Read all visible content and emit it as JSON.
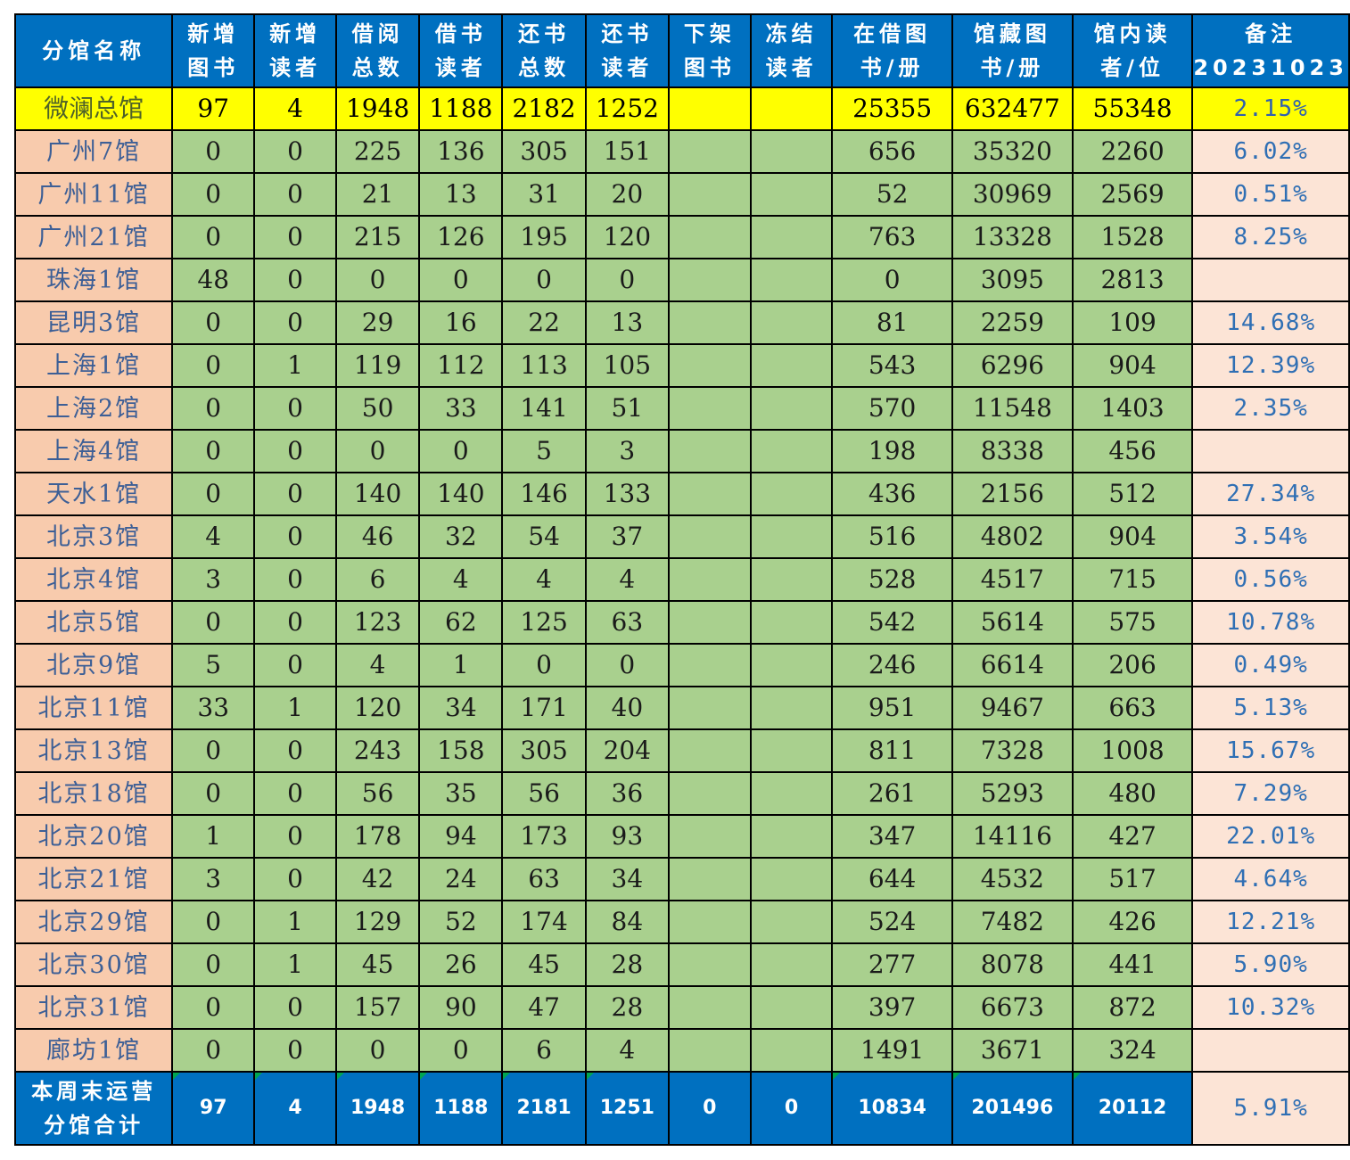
{
  "header": {
    "col0": [
      "分馆名称"
    ],
    "col1": [
      "新增",
      "图书"
    ],
    "col2": [
      "新增",
      "读者"
    ],
    "col3": [
      "借阅",
      "总数"
    ],
    "col4": [
      "借书",
      "读者"
    ],
    "col5": [
      "还书",
      "总数"
    ],
    "col6": [
      "还书",
      "读者"
    ],
    "col7": [
      "下架",
      "图书"
    ],
    "col8": [
      "冻结",
      "读者"
    ],
    "col9": [
      "在借图",
      "书/册"
    ],
    "col10": [
      "馆藏图",
      "书/册"
    ],
    "col11": [
      "馆内读",
      "者/位"
    ],
    "col12": [
      "备注",
      "20231023"
    ]
  },
  "main_branch": [
    "微澜总馆",
    "97",
    "4",
    "1948",
    "1188",
    "2182",
    "1252",
    "",
    "",
    "25355",
    "632477",
    "55348",
    "2.15%"
  ],
  "rows": [
    [
      "广州7馆",
      "0",
      "0",
      "225",
      "136",
      "305",
      "151",
      "",
      "",
      "656",
      "35320",
      "2260",
      "6.02%"
    ],
    [
      "广州11馆",
      "0",
      "0",
      "21",
      "13",
      "31",
      "20",
      "",
      "",
      "52",
      "30969",
      "2569",
      "0.51%"
    ],
    [
      "广州21馆",
      "0",
      "0",
      "215",
      "126",
      "195",
      "120",
      "",
      "",
      "763",
      "13328",
      "1528",
      "8.25%"
    ],
    [
      "珠海1馆",
      "48",
      "0",
      "0",
      "0",
      "0",
      "0",
      "",
      "",
      "0",
      "3095",
      "2813",
      ""
    ],
    [
      "昆明3馆",
      "0",
      "0",
      "29",
      "16",
      "22",
      "13",
      "",
      "",
      "81",
      "2259",
      "109",
      "14.68%"
    ],
    [
      "上海1馆",
      "0",
      "1",
      "119",
      "112",
      "113",
      "105",
      "",
      "",
      "543",
      "6296",
      "904",
      "12.39%"
    ],
    [
      "上海2馆",
      "0",
      "0",
      "50",
      "33",
      "141",
      "51",
      "",
      "",
      "570",
      "11548",
      "1403",
      "2.35%"
    ],
    [
      "上海4馆",
      "0",
      "0",
      "0",
      "0",
      "5",
      "3",
      "",
      "",
      "198",
      "8338",
      "456",
      ""
    ],
    [
      "天水1馆",
      "0",
      "0",
      "140",
      "140",
      "146",
      "133",
      "",
      "",
      "436",
      "2156",
      "512",
      "27.34%"
    ],
    [
      "北京3馆",
      "4",
      "0",
      "46",
      "32",
      "54",
      "37",
      "",
      "",
      "516",
      "4802",
      "904",
      "3.54%"
    ],
    [
      "北京4馆",
      "3",
      "0",
      "6",
      "4",
      "4",
      "4",
      "",
      "",
      "528",
      "4517",
      "715",
      "0.56%"
    ],
    [
      "北京5馆",
      "0",
      "0",
      "123",
      "62",
      "125",
      "63",
      "",
      "",
      "542",
      "5614",
      "575",
      "10.78%"
    ],
    [
      "北京9馆",
      "5",
      "0",
      "4",
      "1",
      "0",
      "0",
      "",
      "",
      "246",
      "6614",
      "206",
      "0.49%"
    ],
    [
      "北京11馆",
      "33",
      "1",
      "120",
      "34",
      "171",
      "40",
      "",
      "",
      "951",
      "9467",
      "663",
      "5.13%"
    ],
    [
      "北京13馆",
      "0",
      "0",
      "243",
      "158",
      "305",
      "204",
      "",
      "",
      "811",
      "7328",
      "1008",
      "15.67%"
    ],
    [
      "北京18馆",
      "0",
      "0",
      "56",
      "35",
      "56",
      "36",
      "",
      "",
      "261",
      "5293",
      "480",
      "7.29%"
    ],
    [
      "北京20馆",
      "1",
      "0",
      "178",
      "94",
      "173",
      "93",
      "",
      "",
      "347",
      "14116",
      "427",
      "22.01%"
    ],
    [
      "北京21馆",
      "3",
      "0",
      "42",
      "24",
      "63",
      "34",
      "",
      "",
      "644",
      "4532",
      "517",
      "4.64%"
    ],
    [
      "北京29馆",
      "0",
      "1",
      "129",
      "52",
      "174",
      "84",
      "",
      "",
      "524",
      "7482",
      "426",
      "12.21%"
    ],
    [
      "北京30馆",
      "0",
      "1",
      "45",
      "26",
      "45",
      "28",
      "",
      "",
      "277",
      "8078",
      "441",
      "5.90%"
    ],
    [
      "北京31馆",
      "0",
      "0",
      "157",
      "90",
      "47",
      "28",
      "",
      "",
      "397",
      "6673",
      "872",
      "10.32%"
    ],
    [
      "廊坊1馆",
      "0",
      "0",
      "0",
      "0",
      "6",
      "4",
      "",
      "",
      "1491",
      "3671",
      "324",
      ""
    ]
  ],
  "summary": {
    "label": [
      "本周末运营",
      "分馆合计"
    ],
    "values": [
      "97",
      "4",
      "1948",
      "1188",
      "2181",
      "1251",
      "0",
      "0",
      "10834",
      "201496",
      "20112",
      "5.91%"
    ]
  },
  "colors": {
    "header_bg": "#0070c0",
    "main_row_bg": "#ffff00",
    "data_bg": "#a9d08e",
    "name_bg": "#f8cbad",
    "note_bg": "#fce4d6",
    "note_text": "#2f6fb4"
  }
}
